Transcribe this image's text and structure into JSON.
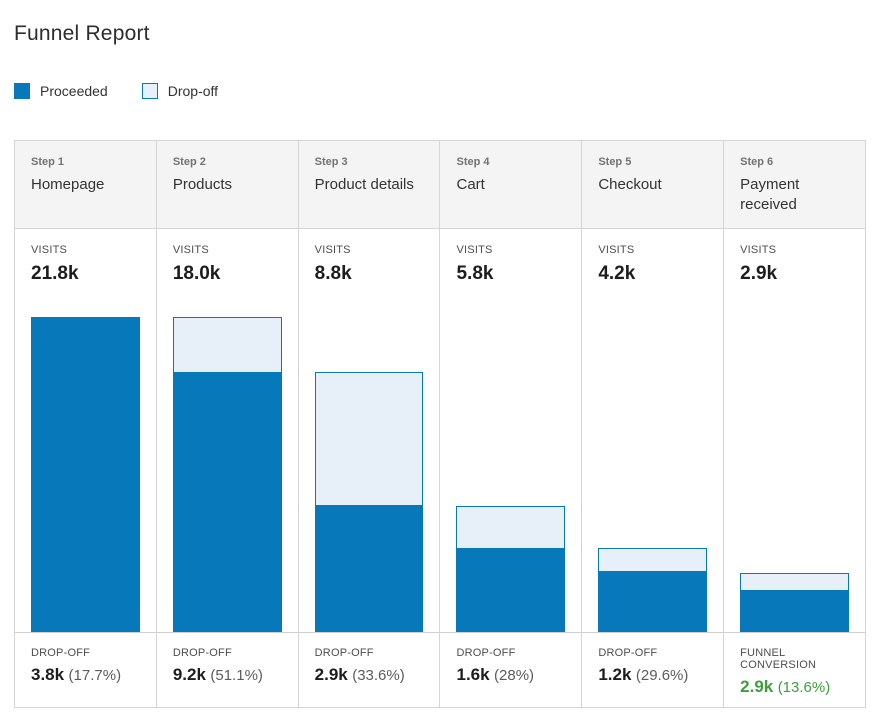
{
  "page": {
    "title": "Funnel Report"
  },
  "labels": {
    "visits": "VISITS"
  },
  "legend": {
    "proceeded": "Proceeded",
    "dropoff": "Drop-off"
  },
  "colors": {
    "proceeded_blue": "#0778b9",
    "dropoff_fill": "#e7f0f8",
    "dropoff_border": "#0778b9",
    "conversion_green": "#3ca03c"
  },
  "chart_data": {
    "type": "bar",
    "title": "Funnel Report",
    "legend": [
      "Proceeded",
      "Drop-off"
    ],
    "unit": "k visits",
    "y_max_k": 21.8,
    "steps": [
      {
        "step_label": "Step 1",
        "name": "Homepage",
        "visits_display": "21.8k",
        "visits_k": 21.8,
        "footer_label": "DROP-OFF",
        "footer_value": "3.8k",
        "footer_value_k": 3.8,
        "footer_pct": "(17.7%)",
        "footer_pct_value": 17.7
      },
      {
        "step_label": "Step 2",
        "name": "Products",
        "visits_display": "18.0k",
        "visits_k": 18.0,
        "footer_label": "DROP-OFF",
        "footer_value": "9.2k",
        "footer_value_k": 9.2,
        "footer_pct": "(51.1%)",
        "footer_pct_value": 51.1
      },
      {
        "step_label": "Step 3",
        "name": "Product details",
        "visits_display": "8.8k",
        "visits_k": 8.8,
        "footer_label": "DROP-OFF",
        "footer_value": "2.9k",
        "footer_value_k": 2.9,
        "footer_pct": "(33.6%)",
        "footer_pct_value": 33.6
      },
      {
        "step_label": "Step 4",
        "name": "Cart",
        "visits_display": "5.8k",
        "visits_k": 5.8,
        "footer_label": "DROP-OFF",
        "footer_value": "1.6k",
        "footer_value_k": 1.6,
        "footer_pct": "(28%)",
        "footer_pct_value": 28
      },
      {
        "step_label": "Step 5",
        "name": "Checkout",
        "visits_display": "4.2k",
        "visits_k": 4.2,
        "footer_label": "DROP-OFF",
        "footer_value": "1.2k",
        "footer_value_k": 1.2,
        "footer_pct": "(29.6%)",
        "footer_pct_value": 29.6
      },
      {
        "step_label": "Step 6",
        "name": "Payment received",
        "visits_display": "2.9k",
        "visits_k": 2.9,
        "footer_label": "FUNNEL CONVERSION",
        "footer_value": "2.9k",
        "footer_value_k": 2.9,
        "footer_pct": "(13.6%)",
        "footer_pct_value": 13.6,
        "footer_type": "conversion"
      }
    ],
    "bars": [
      {
        "proceeded_k": 21.8,
        "dropoff_above_k": 0
      },
      {
        "proceeded_k": 18.0,
        "dropoff_above_k": 3.8
      },
      {
        "proceeded_k": 8.8,
        "dropoff_above_k": 9.2
      },
      {
        "proceeded_k": 5.8,
        "dropoff_above_k": 2.9
      },
      {
        "proceeded_k": 4.2,
        "dropoff_above_k": 1.6
      },
      {
        "proceeded_k": 2.9,
        "dropoff_above_k": 1.2
      }
    ]
  }
}
